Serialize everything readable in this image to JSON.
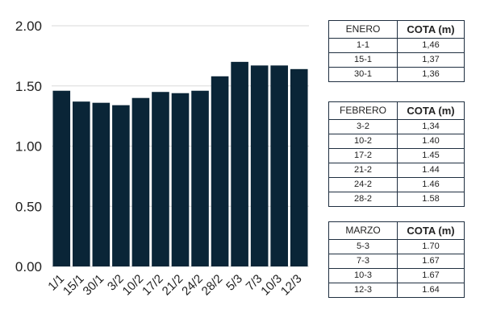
{
  "chart_data": {
    "type": "bar",
    "categories": [
      "1/1",
      "15/1",
      "30/1",
      "3/2",
      "10/2",
      "17/2",
      "21/2",
      "24/2",
      "28/2",
      "5/3",
      "7/3",
      "10/3",
      "12/3"
    ],
    "values": [
      1.46,
      1.37,
      1.36,
      1.34,
      1.4,
      1.45,
      1.44,
      1.46,
      1.58,
      1.7,
      1.67,
      1.67,
      1.64
    ],
    "ylim": [
      0,
      2.0
    ],
    "yticks": [
      "0.00",
      "0.50",
      "1.00",
      "1.50",
      "2.00"
    ],
    "grid": true,
    "bar_color": "#0a2537",
    "title": "",
    "xlabel": "",
    "ylabel": ""
  },
  "tables": [
    {
      "month": "ENERO",
      "col": "COTA (m)",
      "rows": [
        {
          "date": "1-1",
          "value": "1,46"
        },
        {
          "date": "15-1",
          "value": "1,37"
        },
        {
          "date": "30-1",
          "value": "1,36"
        }
      ]
    },
    {
      "month": "FEBRERO",
      "col": "COTA (m)",
      "rows": [
        {
          "date": "3-2",
          "value": "1,34"
        },
        {
          "date": "10-2",
          "value": "1.40"
        },
        {
          "date": "17-2",
          "value": "1.45"
        },
        {
          "date": "21-2",
          "value": "1.44"
        },
        {
          "date": "24-2",
          "value": "1.46"
        },
        {
          "date": "28-2",
          "value": "1.58"
        }
      ]
    },
    {
      "month": "MARZO",
      "col": "COTA (m)",
      "rows": [
        {
          "date": "5-3",
          "value": "1.70"
        },
        {
          "date": "7-3",
          "value": "1.67"
        },
        {
          "date": "10-3",
          "value": "1.67"
        },
        {
          "date": "12-3",
          "value": "1.64"
        }
      ]
    }
  ]
}
